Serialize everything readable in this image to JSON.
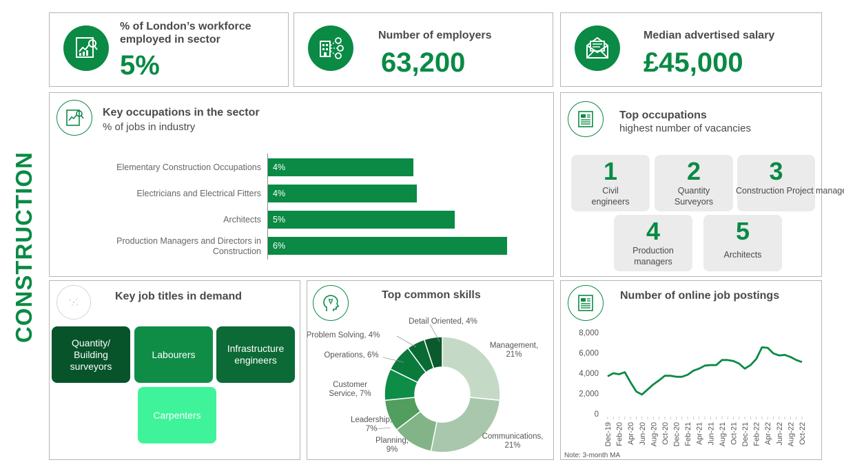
{
  "sector": "CONSTRUCTION",
  "stats": {
    "workforce": {
      "label": "% of London’s workforce employed in sector",
      "value": "5%"
    },
    "employers": {
      "label": "Number of employers",
      "value": "63,200"
    },
    "salary": {
      "label": "Median advertised salary",
      "value": "£45,000"
    }
  },
  "key_occupations": {
    "title": "Key occupations in the sector",
    "subtitle": "% of jobs in industry"
  },
  "top_occupations": {
    "title": "Top occupations",
    "subtitle": "highest number of vacancies",
    "items": [
      {
        "rank": "1",
        "label": "Civil engineers"
      },
      {
        "rank": "2",
        "label": "Quantity Surveyors"
      },
      {
        "rank": "3",
        "label": "Construction Project managers"
      },
      {
        "rank": "4",
        "label": "Production managers"
      },
      {
        "rank": "5",
        "label": "Architects"
      }
    ]
  },
  "job_titles": {
    "title": "Key job titles in demand",
    "items": [
      "Quantity/ Building surveyors",
      "Labourers",
      "Infrastructure engineers",
      "Carpenters"
    ]
  },
  "skills": {
    "title": "Top common skills"
  },
  "postings": {
    "title": "Number of online job postings",
    "note": "Note: 3-month MA"
  },
  "colors": {
    "brand": "#0a8a45",
    "tile_dark": "#07542b",
    "tile_mid": "#0f8d47",
    "tile_deep": "#0c6a36",
    "tile_light": "#3ff39a",
    "panel_border": "#b5b5b5"
  },
  "chart_data": [
    {
      "type": "bar",
      "orientation": "horizontal",
      "categories": [
        "Elementary Construction Occupations",
        "Electricians and Electrical Fitters",
        "Architects",
        "Production Managers and Directors in Construction"
      ],
      "values": [
        4,
        4,
        5,
        6
      ],
      "labels": [
        "4%",
        "4%",
        "5%",
        "6%"
      ],
      "title": "Key occupations in the sector",
      "subtitle": "% of jobs in industry",
      "unit": "%"
    },
    {
      "type": "pie",
      "donut": true,
      "title": "Top common skills",
      "slices": [
        {
          "name": "Management",
          "label": "Management, 21%",
          "value": 21,
          "color": "#c5d9c7"
        },
        {
          "name": "Communications",
          "label": "Communications, 21%",
          "value": 21,
          "color": "#a9c7ad"
        },
        {
          "name": "Planning",
          "label": "Planning, 9%",
          "value": 9,
          "color": "#82b488"
        },
        {
          "name": "Leadership",
          "label": "Leadership, 7%",
          "value": 7,
          "color": "#519e5e"
        },
        {
          "name": "Customer Service",
          "label": "Customer Service, 7%",
          "value": 7,
          "color": "#0e8d47"
        },
        {
          "name": "Operations",
          "label": "Operations, 6%",
          "value": 6,
          "color": "#0a7a3c"
        },
        {
          "name": "Problem Solving",
          "label": "Problem Solving, 4%",
          "value": 4,
          "color": "#096a33"
        },
        {
          "name": "Detail Oriented",
          "label": "Detail Oriented, 4%",
          "value": 4,
          "color": "#0b5a2d"
        }
      ]
    },
    {
      "type": "line",
      "title": "Number of online job postings",
      "ylim": [
        0,
        8000
      ],
      "yticks": [
        "0",
        "2,000",
        "4,000",
        "6,000",
        "8,000"
      ],
      "ytick_values": [
        0,
        2000,
        4000,
        6000,
        8000
      ],
      "x": [
        "Dec-19",
        "Jan-20",
        "Feb-20",
        "Mar-20",
        "Apr-20",
        "May-20",
        "Jun-20",
        "Jul-20",
        "Aug-20",
        "Sep-20",
        "Oct-20",
        "Nov-20",
        "Dec-20",
        "Jan-21",
        "Feb-21",
        "Mar-21",
        "Apr-21",
        "May-21",
        "Jun-21",
        "Jul-21",
        "Aug-21",
        "Sep-21",
        "Oct-21",
        "Nov-21",
        "Dec-21",
        "Jan-22",
        "Feb-22",
        "Mar-22",
        "Apr-22",
        "May-22",
        "Jun-22",
        "Jul-22",
        "Aug-22",
        "Sep-22",
        "Oct-22"
      ],
      "xtick_labels": [
        "Dec-19",
        "Feb-20",
        "Apr-20",
        "Jun-20",
        "Aug-20",
        "Oct-20",
        "Dec-20",
        "Feb-21",
        "Apr-21",
        "Jun-21",
        "Aug-21",
        "Oct-21",
        "Dec-21",
        "Feb-22",
        "Apr-22",
        "Jun-22",
        "Aug-22",
        "Oct-22"
      ],
      "values": [
        3700,
        4000,
        3900,
        4100,
        3100,
        2200,
        1900,
        2400,
        2900,
        3300,
        3750,
        3750,
        3650,
        3650,
        3850,
        4250,
        4450,
        4750,
        4800,
        4800,
        5300,
        5300,
        5200,
        4950,
        4450,
        4800,
        5400,
        6550,
        6500,
        5950,
        5750,
        5800,
        5600,
        5300,
        5100
      ],
      "note": "Note: 3-month MA"
    }
  ]
}
